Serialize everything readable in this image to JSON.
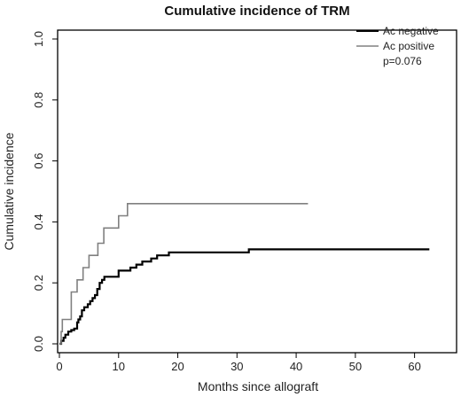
{
  "chart_data": {
    "type": "line",
    "step": true,
    "title": "Cumulative incidence of TRM",
    "xlabel": "Months since allograft",
    "ylabel": "Cumulative incidence",
    "xlim": [
      0,
      65
    ],
    "ylim": [
      0,
      1
    ],
    "xticks": [
      0,
      10,
      20,
      30,
      40,
      50,
      60
    ],
    "yticks": [
      0.0,
      0.2,
      0.4,
      0.6,
      0.8,
      1.0
    ],
    "xtick_labels": [
      "0",
      "10",
      "20",
      "30",
      "40",
      "50",
      "60"
    ],
    "ytick_labels": [
      "0.0",
      "0.2",
      "0.4",
      "0.6",
      "0.8",
      "1.0"
    ],
    "grid": false,
    "legend_position": "top-right",
    "annotation": "p=0.076",
    "series": [
      {
        "name": "Ac negative",
        "color": "#000000",
        "points": [
          [
            0,
            0.0
          ],
          [
            0.3,
            0.01
          ],
          [
            0.7,
            0.02
          ],
          [
            1.0,
            0.03
          ],
          [
            1.5,
            0.04
          ],
          [
            2.0,
            0.045
          ],
          [
            2.5,
            0.05
          ],
          [
            3.0,
            0.07
          ],
          [
            3.2,
            0.08
          ],
          [
            3.5,
            0.09
          ],
          [
            3.8,
            0.11
          ],
          [
            4.2,
            0.12
          ],
          [
            4.8,
            0.13
          ],
          [
            5.2,
            0.14
          ],
          [
            5.6,
            0.15
          ],
          [
            6.0,
            0.16
          ],
          [
            6.4,
            0.18
          ],
          [
            6.8,
            0.2
          ],
          [
            7.2,
            0.21
          ],
          [
            7.6,
            0.22
          ],
          [
            10.0,
            0.24
          ],
          [
            12.0,
            0.25
          ],
          [
            13.0,
            0.26
          ],
          [
            14.0,
            0.27
          ],
          [
            15.5,
            0.28
          ],
          [
            16.5,
            0.29
          ],
          [
            18.5,
            0.3
          ],
          [
            32.0,
            0.31
          ],
          [
            62.5,
            0.31
          ]
        ]
      },
      {
        "name": "Ac positive",
        "color": "#808080",
        "points": [
          [
            0,
            0.0
          ],
          [
            0.3,
            0.04
          ],
          [
            0.5,
            0.08
          ],
          [
            2.0,
            0.17
          ],
          [
            3.0,
            0.21
          ],
          [
            4.0,
            0.25
          ],
          [
            5.0,
            0.29
          ],
          [
            6.5,
            0.33
          ],
          [
            7.5,
            0.38
          ],
          [
            10.0,
            0.42
          ],
          [
            11.5,
            0.46
          ],
          [
            42.0,
            0.46
          ]
        ]
      }
    ]
  }
}
